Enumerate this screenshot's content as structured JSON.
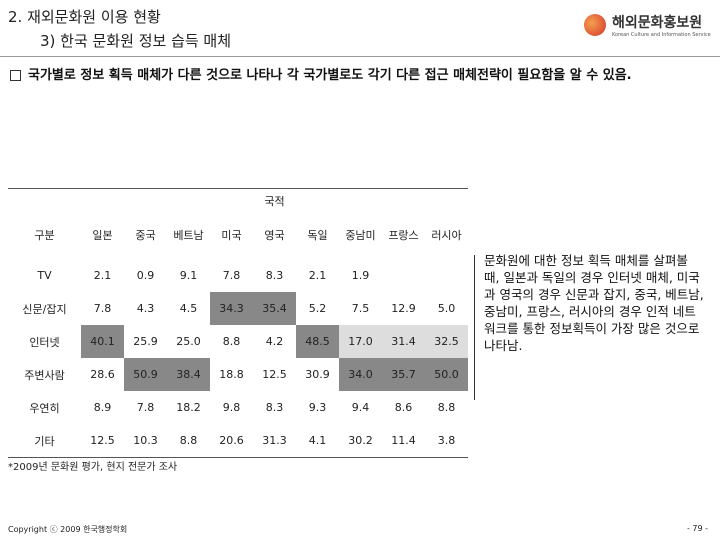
{
  "header": {
    "title": "2. 재외문화원 이용 현황",
    "subtitle": "3) 한국 문화원 정보 습득 매체",
    "logo": "해외문화홍보원",
    "logo_subtitle": "Korean Culture and Information Service"
  },
  "bullet": "국가별로 정보 획득 매체가 다른 것으로 나타나 각 국가별로도 각기 다른 접근 매체전략이 필요함을 알 수 있음.",
  "table": {
    "group_header": "국적",
    "row_header": "구분",
    "columns": [
      "일본",
      "중국",
      "베트남",
      "미국",
      "영국",
      "독일",
      "중남미",
      "프랑스",
      "러시아"
    ],
    "rows": [
      [
        "TV",
        "2.1",
        "0.9",
        "9.1",
        "7.8",
        "8.3",
        "2.1",
        "1.9",
        null,
        null
      ],
      [
        "신문/잡지",
        "7.8",
        "4.3",
        "4.5",
        "34.3",
        "35.4",
        "5.2",
        "7.5",
        "12.9",
        "5.0"
      ],
      [
        "인터넷",
        "40.1",
        "25.9",
        "25.0",
        "8.8",
        "4.2",
        "48.5",
        "17.0",
        "31.4",
        "32.5"
      ],
      [
        "주변사람",
        "28.6",
        "50.9",
        "38.4",
        "18.8",
        "12.5",
        "30.9",
        "34.0",
        "35.7",
        "50.0"
      ],
      [
        "우연히",
        "8.9",
        "7.8",
        "18.2",
        "9.8",
        "8.3",
        "9.3",
        "9.4",
        "8.6",
        "8.8"
      ],
      [
        "기타",
        "12.5",
        "10.3",
        "8.8",
        "20.6",
        "31.3",
        "4.1",
        "30.2",
        "11.4",
        "3.8"
      ]
    ]
  },
  "note": "문화원에 대한 정보 획득 매체를 살펴볼 때, 일본과 독일의 경우 인터넷 매체, 미국과 영국의 경우 신문과 잡지, 중국, 베트남, 중남미, 프랑스, 러시아의 경우 인적 네트워크를 통한 정보획득이 가장 많은 것으로 나타남.",
  "source": "*2009년 문화원 평가, 현지 전문가 조사",
  "footer": {
    "copyright": "Copyright ⓒ 2009 한국행정학회",
    "page": "- 79 -"
  }
}
